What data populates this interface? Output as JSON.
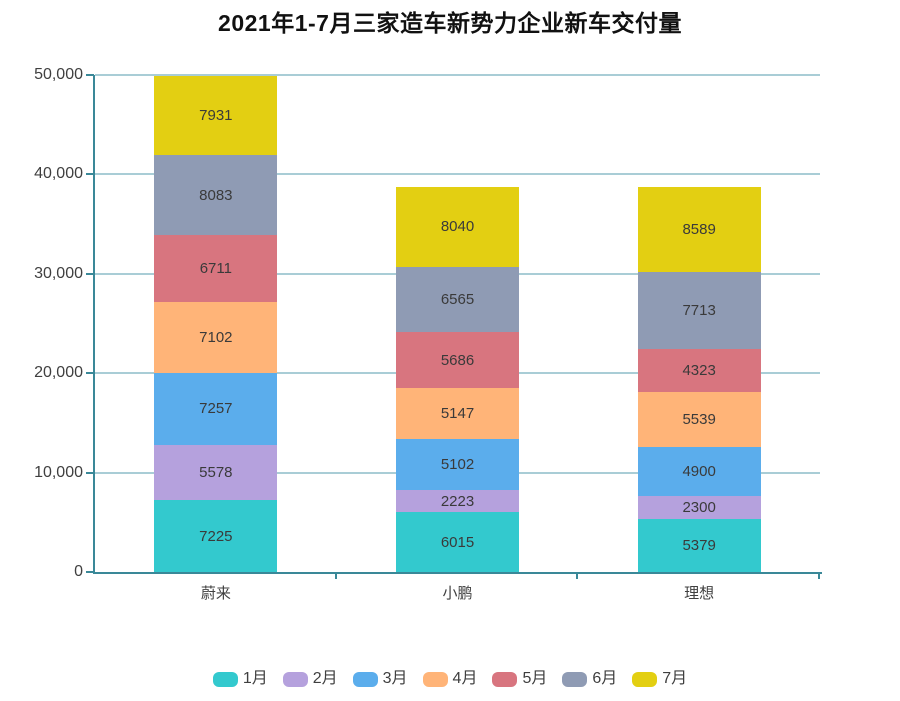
{
  "chart_data": {
    "type": "bar",
    "stacked": true,
    "title": "2021年1-7月三家造车新势力企业新车交付量",
    "categories": [
      "蔚来",
      "小鹏",
      "理想"
    ],
    "series": [
      {
        "name": "1月",
        "color": "#33c9ce",
        "values": [
          7225,
          6015,
          5379
        ]
      },
      {
        "name": "2月",
        "color": "#b5a1dd",
        "values": [
          5578,
          2223,
          2300
        ]
      },
      {
        "name": "3月",
        "color": "#5badec",
        "values": [
          7257,
          5102,
          4900
        ]
      },
      {
        "name": "4月",
        "color": "#ffb478",
        "values": [
          7102,
          5147,
          5539
        ]
      },
      {
        "name": "5月",
        "color": "#d8757f",
        "values": [
          6711,
          5686,
          4323
        ]
      },
      {
        "name": "6月",
        "color": "#8f9bb4",
        "values": [
          8083,
          6565,
          7713
        ]
      },
      {
        "name": "7月",
        "color": "#e3cf12",
        "values": [
          7931,
          8040,
          8589
        ]
      }
    ],
    "ylim": [
      0,
      50000
    ],
    "yticks": [
      {
        "value": 0,
        "label": "0"
      },
      {
        "value": 10000,
        "label": "10,000"
      },
      {
        "value": 20000,
        "label": "20,000"
      },
      {
        "value": 30000,
        "label": "30,000"
      },
      {
        "value": 40000,
        "label": "40,000"
      },
      {
        "value": 50000,
        "label": "50,000"
      }
    ],
    "grid": true,
    "legend_position": "bottom",
    "colors": {
      "axis": "#3a8898",
      "gridline": "#a9cdd6",
      "text": "#3f3f3f",
      "title": "#111111"
    }
  }
}
